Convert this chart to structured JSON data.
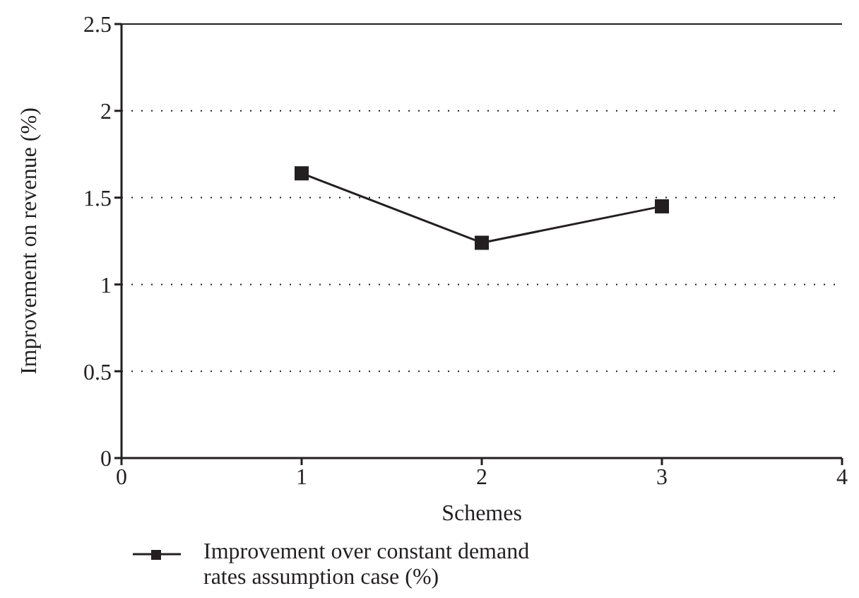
{
  "chart_data": {
    "type": "line",
    "xlabel": "Schemes",
    "ylabel": "Improvement on revenue (%)",
    "x": [
      1,
      2,
      3
    ],
    "series": [
      {
        "name": "Improvement over constant demand rates assumption case (%)",
        "color": "#231f20",
        "values": [
          1.64,
          1.24,
          1.45
        ]
      }
    ],
    "xlim": [
      0,
      4
    ],
    "xticks": [
      0,
      1,
      2,
      3,
      4
    ],
    "ylim": [
      0,
      2.5
    ],
    "yticks": [
      0,
      0.5,
      1,
      1.5,
      2,
      2.5
    ],
    "grid": "y",
    "legend": "bottom left",
    "marker": "square",
    "line_style": "solid"
  }
}
